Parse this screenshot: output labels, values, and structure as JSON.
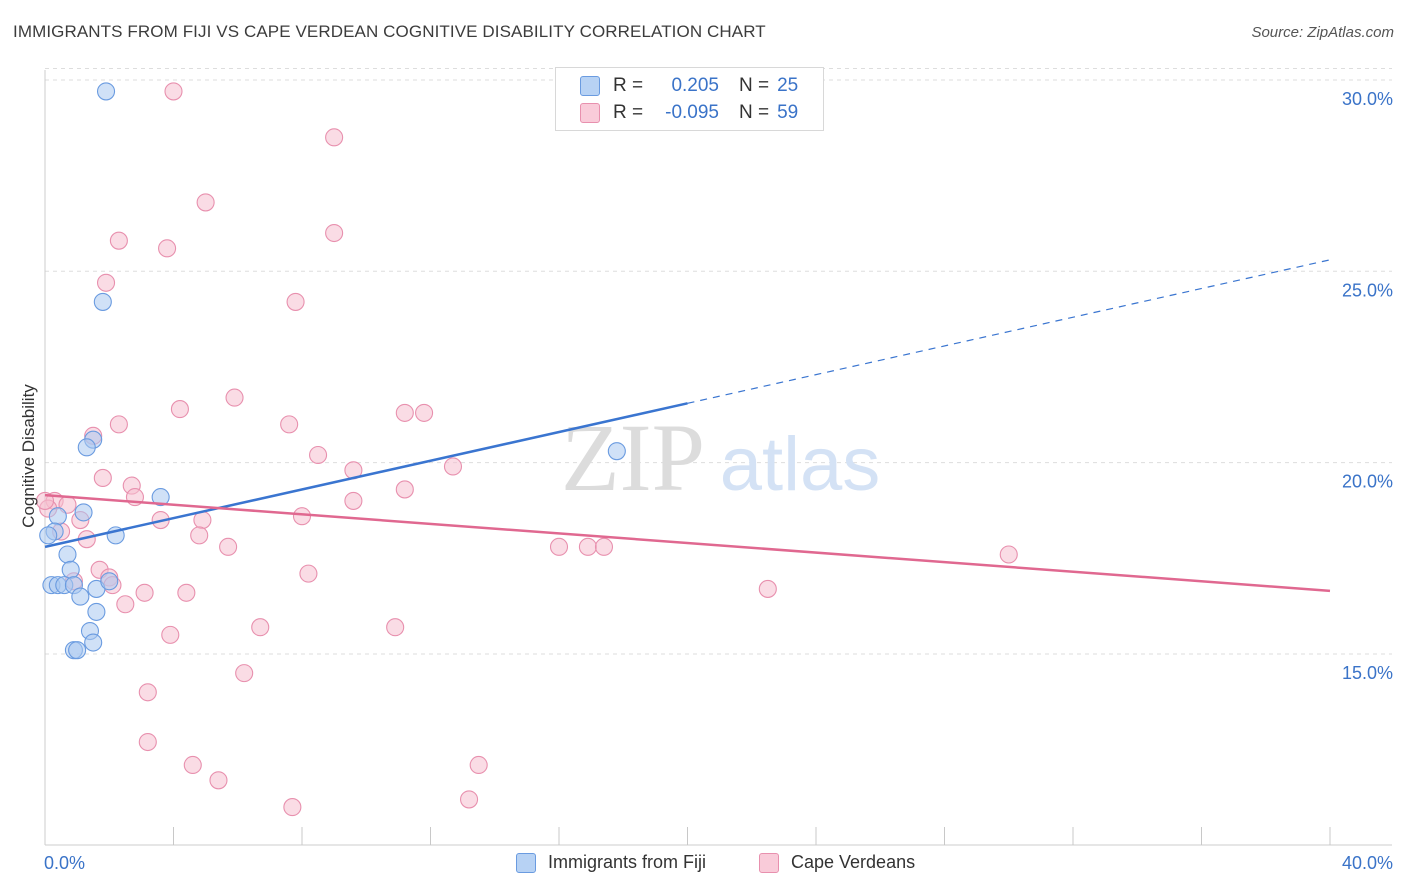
{
  "title": "IMMIGRANTS FROM FIJI VS CAPE VERDEAN COGNITIVE DISABILITY CORRELATION CHART",
  "source": "Source: ZipAtlas.com",
  "watermark": {
    "part1": "ZIP",
    "part2": "atlas"
  },
  "stats": [
    {
      "r_label": "R =",
      "r_value": "0.205",
      "n_label": "N =",
      "n_value": "25"
    },
    {
      "r_label": "R =",
      "r_value": "-0.095",
      "n_label": "N =",
      "n_value": "59"
    }
  ],
  "legend": [
    {
      "label": "Immigrants from Fiji"
    },
    {
      "label": "Cape Verdeans"
    }
  ],
  "chart_data": {
    "type": "scatter",
    "ylabel": "Cognitive Disability",
    "xlim": [
      0,
      40
    ],
    "ylim": [
      10.4,
      31.0
    ],
    "x_tick_labels": [
      {
        "value": 0,
        "label": "0.0%"
      },
      {
        "value": 40,
        "label": "40.0%"
      }
    ],
    "x_minor_ticks": [
      4,
      8,
      12,
      16,
      20,
      24,
      28,
      32,
      36,
      40
    ],
    "y_ticks": [
      {
        "value": 15,
        "label": "15.0%"
      },
      {
        "value": 20,
        "label": "20.0%"
      },
      {
        "value": 25,
        "label": "25.0%"
      },
      {
        "value": 30,
        "label": "30.0%"
      }
    ],
    "grid": true,
    "colors": {
      "fiji_fill": "#aac8f0",
      "fiji_stroke": "#6a9be0",
      "fiji_line": "#3a75d0",
      "cape_fill": "#f6bfd0",
      "cape_stroke": "#e890ae",
      "cape_line": "#e06890",
      "axis_label": "#3a73c8",
      "grid": "#dddddd"
    },
    "series": [
      {
        "name": "Immigrants from Fiji",
        "points": [
          [
            1.9,
            29.7
          ],
          [
            1.8,
            24.2
          ],
          [
            1.5,
            20.6
          ],
          [
            1.3,
            20.4
          ],
          [
            0.4,
            18.6
          ],
          [
            1.2,
            18.7
          ],
          [
            3.6,
            19.1
          ],
          [
            2.2,
            18.1
          ],
          [
            0.3,
            18.2
          ],
          [
            0.7,
            17.6
          ],
          [
            0.8,
            17.2
          ],
          [
            0.2,
            16.8
          ],
          [
            0.4,
            16.8
          ],
          [
            0.6,
            16.8
          ],
          [
            0.9,
            16.8
          ],
          [
            1.6,
            16.7
          ],
          [
            2.0,
            16.9
          ],
          [
            1.1,
            16.5
          ],
          [
            1.6,
            16.1
          ],
          [
            1.4,
            15.6
          ],
          [
            1.5,
            15.3
          ],
          [
            0.9,
            15.1
          ],
          [
            1.0,
            15.1
          ],
          [
            17.8,
            20.3
          ],
          [
            0.1,
            18.1
          ]
        ],
        "trend": {
          "x": [
            0,
            20
          ],
          "y": [
            17.8,
            21.55
          ]
        },
        "trend_extrapolated": {
          "x": [
            20,
            40
          ],
          "y": [
            21.55,
            25.3
          ]
        }
      },
      {
        "name": "Cape Verdeans",
        "points": [
          [
            4.0,
            29.7
          ],
          [
            9.0,
            28.5
          ],
          [
            5.0,
            26.8
          ],
          [
            2.3,
            25.8
          ],
          [
            3.8,
            25.6
          ],
          [
            9.0,
            26.0
          ],
          [
            1.9,
            24.7
          ],
          [
            7.8,
            24.2
          ],
          [
            5.9,
            21.7
          ],
          [
            4.2,
            21.4
          ],
          [
            11.2,
            21.3
          ],
          [
            11.8,
            21.3
          ],
          [
            7.6,
            21.0
          ],
          [
            2.3,
            21.0
          ],
          [
            1.5,
            20.7
          ],
          [
            8.5,
            20.2
          ],
          [
            9.6,
            19.8
          ],
          [
            12.7,
            19.9
          ],
          [
            1.8,
            19.6
          ],
          [
            2.7,
            19.4
          ],
          [
            11.2,
            19.3
          ],
          [
            0.3,
            19.0
          ],
          [
            0.7,
            18.9
          ],
          [
            2.8,
            19.1
          ],
          [
            9.6,
            19.0
          ],
          [
            0.1,
            18.8
          ],
          [
            3.6,
            18.5
          ],
          [
            4.9,
            18.5
          ],
          [
            8.0,
            18.6
          ],
          [
            0.5,
            18.2
          ],
          [
            1.3,
            18.0
          ],
          [
            4.8,
            18.1
          ],
          [
            5.7,
            17.8
          ],
          [
            16.0,
            17.8
          ],
          [
            16.9,
            17.8
          ],
          [
            17.4,
            17.8
          ],
          [
            30.0,
            17.6
          ],
          [
            1.7,
            17.2
          ],
          [
            8.2,
            17.1
          ],
          [
            2.0,
            17.0
          ],
          [
            2.1,
            16.8
          ],
          [
            3.1,
            16.6
          ],
          [
            4.4,
            16.6
          ],
          [
            0.9,
            16.9
          ],
          [
            2.5,
            16.3
          ],
          [
            22.5,
            16.7
          ],
          [
            6.7,
            15.7
          ],
          [
            3.9,
            15.5
          ],
          [
            10.9,
            15.7
          ],
          [
            6.2,
            14.5
          ],
          [
            3.2,
            14.0
          ],
          [
            3.2,
            12.7
          ],
          [
            4.6,
            12.1
          ],
          [
            13.5,
            12.1
          ],
          [
            5.4,
            11.7
          ],
          [
            7.7,
            11.0
          ],
          [
            13.2,
            11.2
          ],
          [
            0.0,
            19.0
          ],
          [
            1.1,
            18.5
          ]
        ],
        "trend": {
          "x": [
            0,
            40
          ],
          "y": [
            19.15,
            16.65
          ]
        }
      }
    ]
  }
}
